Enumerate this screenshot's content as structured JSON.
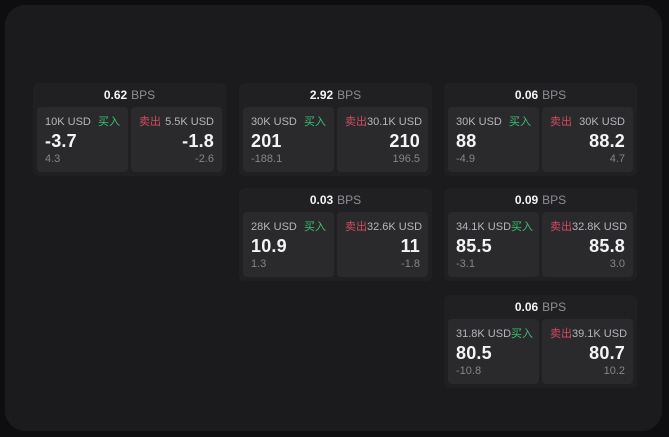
{
  "labels": {
    "bps": "BPS",
    "buy": "买入",
    "sell": "卖出"
  },
  "colors": {
    "buy": "#3CC06F",
    "sell": "#D14B61",
    "window_bg": "#1B1B1E",
    "card_bg": "#202023",
    "tile_bg": "#2A2A2D"
  },
  "cards": [
    {
      "bps": "0.62",
      "buy": {
        "amount": "10K USD",
        "value": "-3.7",
        "sub": "4.3"
      },
      "sell": {
        "amount": "5.5K USD",
        "value": "-1.8",
        "sub": "-2.6"
      }
    },
    {
      "bps": "2.92",
      "buy": {
        "amount": "30K USD",
        "value": "201",
        "sub": "-188.1"
      },
      "sell": {
        "amount": "30.1K USD",
        "value": "210",
        "sub": "196.5"
      }
    },
    {
      "bps": "0.06",
      "buy": {
        "amount": "30K USD",
        "value": "88",
        "sub": "-4.9"
      },
      "sell": {
        "amount": "30K USD",
        "value": "88.2",
        "sub": "4.7"
      }
    },
    {
      "bps": "0.03",
      "buy": {
        "amount": "28K USD",
        "value": "10.9",
        "sub": "1.3"
      },
      "sell": {
        "amount": "32.6K USD",
        "value": "11",
        "sub": "-1.8"
      }
    },
    {
      "bps": "0.09",
      "buy": {
        "amount": "34.1K USD",
        "value": "85.5",
        "sub": "-3.1"
      },
      "sell": {
        "amount": "32.8K USD",
        "value": "85.8",
        "sub": "3.0"
      }
    },
    {
      "bps": "0.06",
      "buy": {
        "amount": "31.8K USD",
        "value": "80.5",
        "sub": "-10.8"
      },
      "sell": {
        "amount": "39.1K USD",
        "value": "80.7",
        "sub": "10.2"
      }
    }
  ]
}
